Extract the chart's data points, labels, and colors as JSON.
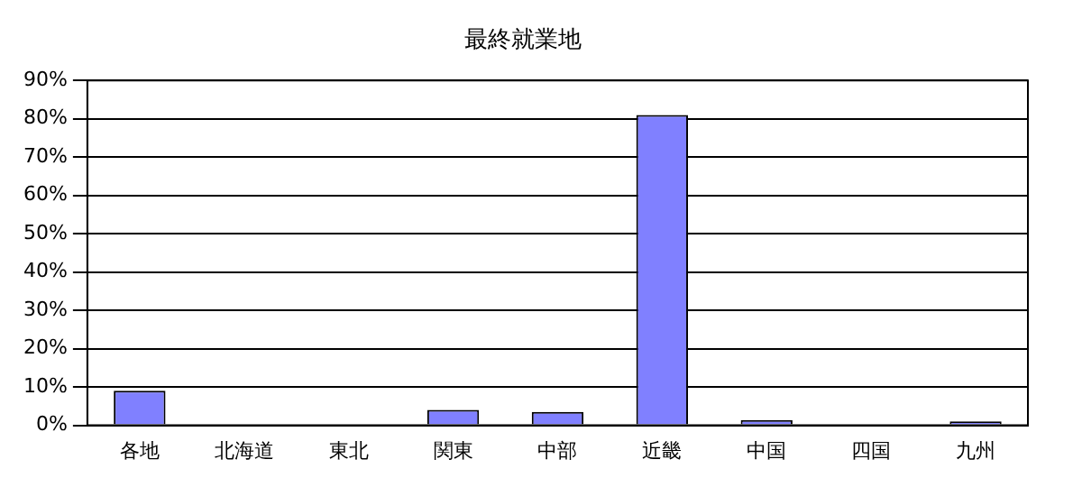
{
  "chart_data": {
    "type": "bar",
    "title": "最終就業地",
    "categories": [
      "各地",
      "北海道",
      "東北",
      "関東",
      "中部",
      "近畿",
      "中国",
      "四国",
      "九州"
    ],
    "values": [
      9,
      0,
      0,
      4,
      3.5,
      81,
      1.4,
      0,
      1
    ],
    "color": "#8080ff",
    "ylim": [
      0,
      90
    ],
    "yticks": [
      {
        "value": 0,
        "label": "0%"
      },
      {
        "value": 10,
        "label": "10%"
      },
      {
        "value": 20,
        "label": "20%"
      },
      {
        "value": 30,
        "label": "30%"
      },
      {
        "value": 40,
        "label": "40%"
      },
      {
        "value": 50,
        "label": "50%"
      },
      {
        "value": 60,
        "label": "60%"
      },
      {
        "value": 70,
        "label": "70%"
      },
      {
        "value": 80,
        "label": "80%"
      },
      {
        "value": 90,
        "label": "90%"
      }
    ],
    "grid": "y",
    "legend": false
  }
}
